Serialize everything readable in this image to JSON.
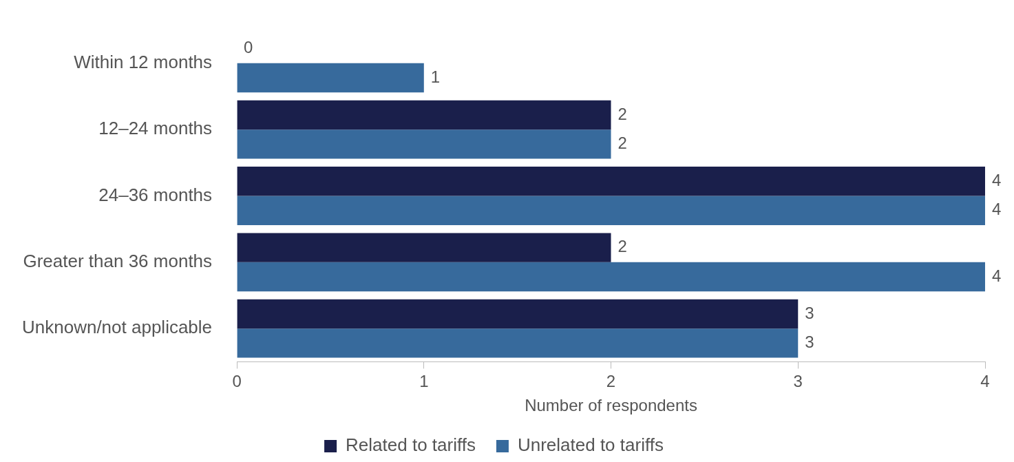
{
  "chart_data": {
    "type": "bar",
    "orientation": "horizontal",
    "xlabel": "Number of respondents",
    "categories": [
      "Within 12 months",
      "12–24 months",
      "24–36 months",
      "Greater than 36 months",
      "Unknown/not applicable"
    ],
    "series": [
      {
        "name": "Related to tariffs",
        "color": "#1a1f4b",
        "values": [
          0,
          2,
          4,
          2,
          3
        ]
      },
      {
        "name": "Unrelated to tariffs",
        "color": "#376a9c",
        "values": [
          1,
          2,
          4,
          4,
          3
        ]
      }
    ],
    "xlim": [
      0,
      4
    ],
    "xticks": [
      0,
      1,
      2,
      3,
      4
    ],
    "grid": false,
    "legend": "bottom",
    "data_labels": true
  }
}
